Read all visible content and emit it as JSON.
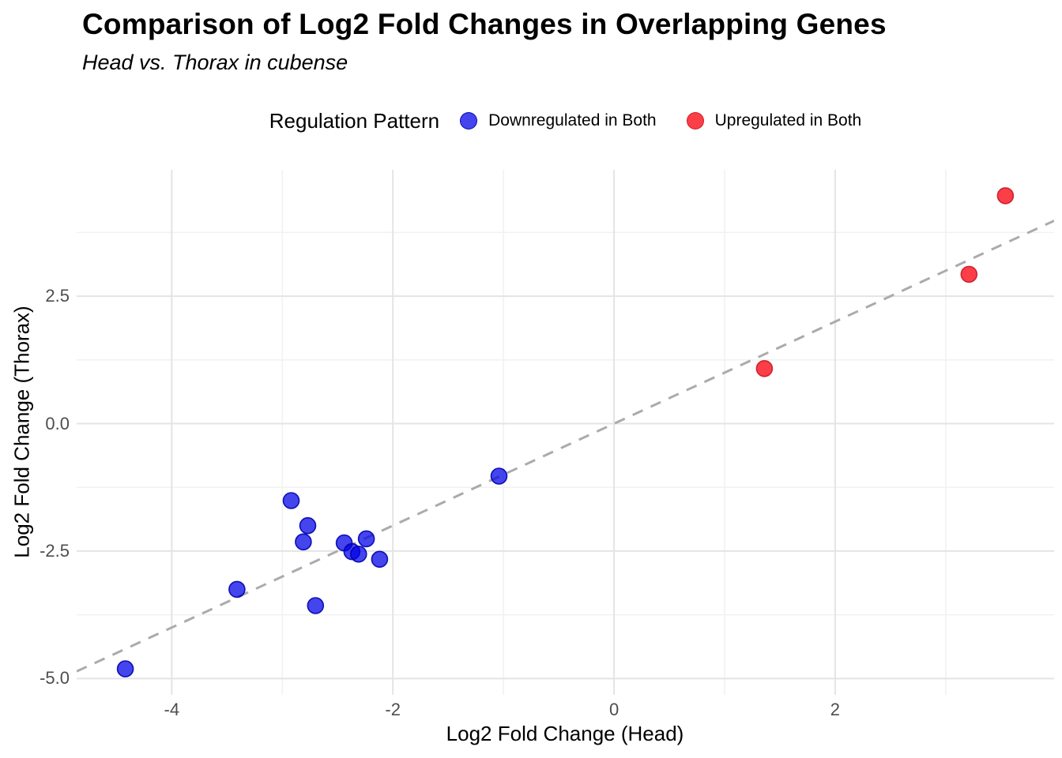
{
  "header": {
    "title": "Comparison of Log2 Fold Changes in Overlapping Genes",
    "subtitle": "Head vs. Thorax in cubense"
  },
  "legend": {
    "title": "Regulation Pattern",
    "items": [
      {
        "label": "Downregulated in Both",
        "dot_fill": "rgba(0,0,230,0.73)",
        "dot_stroke": "rgba(0,0,175,0.9)"
      },
      {
        "label": "Upregulated in Both",
        "dot_fill": "rgba(250,20,30,0.82)",
        "dot_stroke": "rgba(200,25,35,0.9)"
      }
    ]
  },
  "chart_data": {
    "type": "scatter",
    "title": "Comparison of Log2 Fold Changes in Overlapping Genes",
    "subtitle": "Head vs. Thorax in cubense",
    "xlabel": "Log2 Fold Change (Head)",
    "ylabel": "Log2 Fold Change (Thorax)",
    "xlim": [
      -4.86,
      3.98
    ],
    "ylim": [
      -5.32,
      4.98
    ],
    "x_major_ticks": [
      -4,
      -2,
      0,
      2
    ],
    "x_major_tick_labels": [
      "-4",
      "-2",
      "0",
      "2"
    ],
    "x_minor_ticks": [
      -3,
      -1,
      1,
      3
    ],
    "y_major_ticks": [
      2.5,
      0.0,
      -2.5,
      -5.0
    ],
    "y_major_tick_labels": [
      "2.5",
      "0.0",
      "-2.5",
      "-5.0"
    ],
    "y_minor_ticks": [
      3.75,
      1.25,
      -1.25,
      -3.75
    ],
    "grid": {
      "major_color": "#e4e4e4",
      "minor_color": "#f1f1f1",
      "background": "#ffffff"
    },
    "reference_line": {
      "type": "identity y = x",
      "style": "dashed",
      "color": "#ababab",
      "width": 3
    },
    "point_radius": 10,
    "legend_position": "top-center",
    "series": [
      {
        "name": "Downregulated in Both",
        "color": "rgba(0,0,230,0.73)",
        "stroke": "rgba(0,0,175,0.9)",
        "points": [
          [
            -4.42,
            -4.81
          ],
          [
            -3.41,
            -3.25
          ],
          [
            -2.92,
            -1.51
          ],
          [
            -2.81,
            -2.32
          ],
          [
            -2.77,
            -2.0
          ],
          [
            -2.7,
            -3.57
          ],
          [
            -2.44,
            -2.34
          ],
          [
            -2.37,
            -2.51
          ],
          [
            -2.31,
            -2.56
          ],
          [
            -2.24,
            -2.26
          ],
          [
            -2.12,
            -2.66
          ],
          [
            -1.04,
            -1.03
          ]
        ]
      },
      {
        "name": "Upregulated in Both",
        "color": "rgba(250,20,30,0.82)",
        "stroke": "rgba(200,25,35,0.9)",
        "points": [
          [
            1.36,
            1.08
          ],
          [
            3.21,
            2.93
          ],
          [
            3.54,
            4.47
          ]
        ]
      }
    ]
  }
}
